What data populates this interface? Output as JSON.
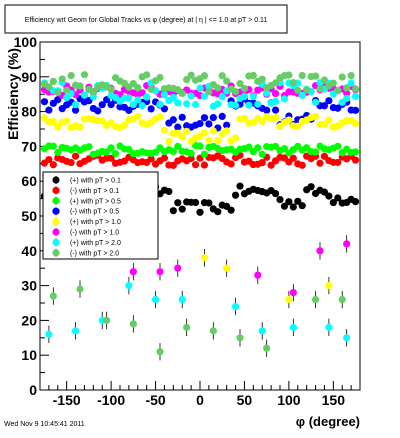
{
  "chart_data": {
    "type": "scatter",
    "title": "Efficiency wrt Geom for Global Tracks vs φ (degree) at |  η | <= 1.0 at pT > 0.11",
    "xlabel": "φ (degree)",
    "ylabel": "Efficiency (%)",
    "xlim": [
      -180,
      180
    ],
    "ylim": [
      0,
      100
    ],
    "xticks": [
      -150,
      -100,
      -50,
      0,
      50,
      100,
      150
    ],
    "yticks": [
      0,
      10,
      20,
      30,
      40,
      50,
      60,
      70,
      80,
      90,
      100
    ],
    "grid": false,
    "legend_position": "center-left",
    "footer": "Wed Nov  9 10:45:41 2011",
    "series": [
      {
        "name": "(+) with pT > 0.1",
        "color": "#000000",
        "marker": "circle",
        "base": 57,
        "noise": 1.6,
        "gaps": [
          [
            -32,
            38,
            -4.5
          ],
          [
            88,
            118,
            -3
          ],
          [
            150,
            175,
            -2
          ]
        ]
      },
      {
        "name": "(-) with pT > 0.1",
        "color": "#ff0000",
        "marker": "circle",
        "base": 66,
        "noise": 1.5,
        "gaps": []
      },
      {
        "name": "(+) with pT > 0.5",
        "color": "#00ff00",
        "marker": "circle",
        "base": 69,
        "noise": 1.3,
        "gaps": []
      },
      {
        "name": "(-) with pT > 0.5",
        "color": "#0000ff",
        "marker": "circle",
        "base": 82,
        "noise": 1.8,
        "gaps": [
          [
            -35,
            30,
            -5
          ],
          [
            90,
            125,
            -4
          ]
        ]
      },
      {
        "name": "(+) with pT > 1.0",
        "color": "#ffff00",
        "marker": "circle",
        "base": 77,
        "noise": 1.7,
        "gaps": [
          [
            -40,
            40,
            -4
          ]
        ],
        "sparse": [
          [
            5,
            38
          ],
          [
            30,
            35
          ],
          [
            100,
            26
          ],
          [
            145,
            30
          ]
        ]
      },
      {
        "name": "(-) with pT > 1.0",
        "color": "#ff00ff",
        "marker": "circle",
        "base": 86,
        "noise": 1.5,
        "gaps": [],
        "sparse": [
          [
            -75,
            34
          ],
          [
            -45,
            34
          ],
          [
            -25,
            35
          ],
          [
            65,
            33
          ],
          [
            105,
            28
          ],
          [
            135,
            40
          ],
          [
            165,
            42
          ]
        ]
      },
      {
        "name": "(+) with pT > 2.0",
        "color": "#00ffff",
        "marker": "circle",
        "base": 85,
        "noise": 3.5,
        "gaps": [],
        "sparse": [
          [
            -170,
            16
          ],
          [
            -140,
            17
          ],
          [
            -110,
            20
          ],
          [
            -80,
            30
          ],
          [
            -50,
            26
          ],
          [
            -20,
            26
          ],
          [
            40,
            24
          ],
          [
            70,
            17
          ],
          [
            105,
            18
          ],
          [
            145,
            18
          ],
          [
            165,
            15
          ]
        ]
      },
      {
        "name": "(-) with pT > 2.0",
        "color": "#66cc66",
        "marker": "circle",
        "base": 88,
        "noise": 2.8,
        "gaps": [],
        "sparse": [
          [
            -165,
            27
          ],
          [
            -135,
            29
          ],
          [
            -105,
            20
          ],
          [
            -75,
            19
          ],
          [
            -45,
            11
          ],
          [
            -15,
            18
          ],
          [
            15,
            17
          ],
          [
            45,
            15
          ],
          [
            75,
            12
          ],
          [
            130,
            26
          ],
          [
            160,
            26
          ]
        ]
      }
    ]
  }
}
